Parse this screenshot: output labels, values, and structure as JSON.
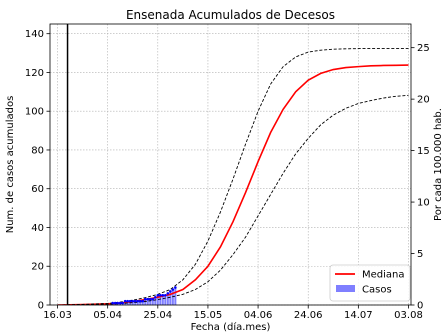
{
  "chart_data": {
    "type": "line",
    "title": "Ensenada Acumulados de Decesos",
    "xlabel": "Fecha (día.mes)",
    "ylabel": "Num. de casos acumulados",
    "ylabel_right": "Por cada 100.000 hab.",
    "x_unit": "days since 16.03",
    "xlim": [
      -3,
      141
    ],
    "ylim": [
      0,
      145
    ],
    "ylim_right": [
      0,
      27.3
    ],
    "grid": true,
    "x_ticks": [
      {
        "x": 0,
        "label": "16.03"
      },
      {
        "x": 20,
        "label": "05.04"
      },
      {
        "x": 40,
        "label": "25.04"
      },
      {
        "x": 60,
        "label": "15.05"
      },
      {
        "x": 80,
        "label": "04.06"
      },
      {
        "x": 100,
        "label": "24.06"
      },
      {
        "x": 120,
        "label": "14.07"
      },
      {
        "x": 140,
        "label": "03.08"
      }
    ],
    "y_ticks": [
      0,
      20,
      40,
      60,
      80,
      100,
      120,
      140
    ],
    "y_ticks_right": [
      0,
      5,
      10,
      15,
      20,
      25
    ],
    "vline_x": 4,
    "legend": {
      "position": "bottom-right",
      "entries": [
        {
          "label": "Mediana",
          "color": "#ff0000",
          "kind": "line"
        },
        {
          "label": "Casos",
          "color": "#7f7fff",
          "kind": "bar"
        }
      ]
    },
    "series": [
      {
        "name": "Mediana",
        "color": "#ff0000",
        "style": "solid",
        "x": [
          0,
          10,
          20,
          25,
          30,
          35,
          40,
          45,
          50,
          55,
          60,
          65,
          70,
          75,
          80,
          85,
          90,
          95,
          100,
          105,
          110,
          115,
          120,
          125,
          130,
          135,
          140
        ],
        "y": [
          0,
          0.2,
          0.6,
          1,
          1.8,
          2.8,
          4,
          5.5,
          8,
          13,
          20,
          30,
          43,
          58,
          74,
          89,
          101,
          110,
          116,
          119.5,
          121.5,
          122.5,
          123,
          123.4,
          123.6,
          123.7,
          123.8
        ]
      },
      {
        "name": "upper",
        "color": "#000000",
        "style": "dashed",
        "x": [
          0,
          10,
          20,
          25,
          30,
          35,
          40,
          45,
          50,
          55,
          60,
          65,
          70,
          75,
          80,
          85,
          90,
          95,
          100,
          105,
          110,
          115,
          120,
          125,
          130,
          135,
          140
        ],
        "y": [
          0,
          0.3,
          0.8,
          1.5,
          2.5,
          3.8,
          5.5,
          8,
          13,
          21,
          33,
          48,
          65,
          83,
          100,
          114,
          123,
          128,
          130.5,
          131.5,
          132,
          132.2,
          132.3,
          132.3,
          132.3,
          132.3,
          132.3
        ]
      },
      {
        "name": "lower",
        "color": "#000000",
        "style": "dashed",
        "x": [
          0,
          10,
          20,
          25,
          30,
          35,
          40,
          45,
          50,
          55,
          60,
          65,
          70,
          75,
          80,
          85,
          90,
          95,
          100,
          105,
          110,
          115,
          120,
          125,
          130,
          135,
          140
        ],
        "y": [
          0,
          0.1,
          0.4,
          0.7,
          1.2,
          1.8,
          2.8,
          4,
          5.5,
          8,
          12,
          18,
          26,
          35,
          46,
          57,
          68,
          78,
          86,
          93,
          98,
          101.5,
          104,
          105.5,
          106.8,
          107.7,
          108.2
        ]
      }
    ],
    "casos": {
      "name": "Casos",
      "color": "#7f7fff",
      "points_color": "#0000ff",
      "x": [
        22,
        23,
        24,
        25,
        26,
        27,
        28,
        29,
        30,
        31,
        32,
        33,
        34,
        35,
        36,
        37,
        38,
        39,
        40,
        41,
        42,
        43,
        44,
        45,
        46,
        47
      ],
      "y": [
        1,
        1,
        1,
        1,
        1,
        2,
        2,
        2,
        2,
        2,
        2,
        2,
        2,
        3,
        3,
        3,
        3,
        4,
        5,
        5,
        5,
        5,
        6,
        7,
        8,
        9
      ]
    }
  }
}
